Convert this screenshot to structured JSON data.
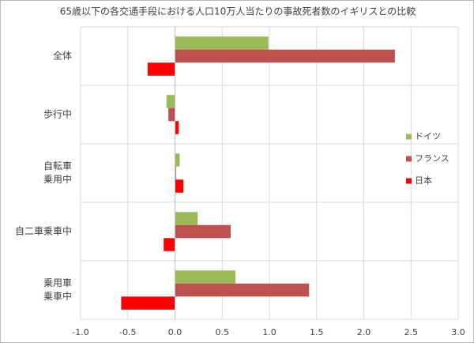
{
  "chart_data": {
    "type": "hbar",
    "title": "65歳以下の各交通手段における人口10万人当たりの事故死者数のイギリスとの比較",
    "categories": [
      "全体",
      "歩行中",
      "自転車\n乗用中",
      "自二車乗車中",
      "乗用車\n乗車中"
    ],
    "series": [
      {
        "name": "ドイツ",
        "color": "#9bbb59",
        "values": [
          0.99,
          -0.09,
          0.05,
          0.24,
          0.64
        ]
      },
      {
        "name": "フランス",
        "color": "#c0504d",
        "values": [
          2.33,
          -0.07,
          0.01,
          0.59,
          1.42
        ]
      },
      {
        "name": "日本",
        "color": "#ff0000",
        "values": [
          -0.29,
          0.04,
          0.09,
          -0.12,
          -0.57
        ]
      }
    ],
    "xlim": [
      -1,
      3
    ],
    "xticks": [
      {
        "value": -1,
        "label": "-1.0"
      },
      {
        "value": -0.5,
        "label": "-0.5"
      },
      {
        "value": 0,
        "label": "0.0"
      },
      {
        "value": 0.5,
        "label": "0.5"
      },
      {
        "value": 1,
        "label": "1.0"
      },
      {
        "value": 1.5,
        "label": "1.5"
      },
      {
        "value": 2,
        "label": "2.0"
      },
      {
        "value": 2.5,
        "label": "2.5"
      },
      {
        "value": 3,
        "label": "3.0"
      }
    ],
    "grid": true,
    "legend": "right"
  }
}
